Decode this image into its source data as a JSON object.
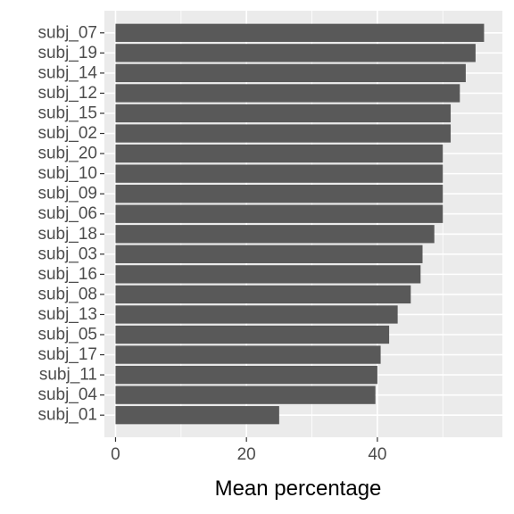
{
  "chart_data": {
    "type": "bar",
    "orientation": "horizontal",
    "categories": [
      "subj_07",
      "subj_19",
      "subj_14",
      "subj_12",
      "subj_15",
      "subj_02",
      "subj_20",
      "subj_10",
      "subj_09",
      "subj_06",
      "subj_18",
      "subj_03",
      "subj_16",
      "subj_08",
      "subj_13",
      "subj_05",
      "subj_17",
      "subj_11",
      "subj_04",
      "subj_01"
    ],
    "values": [
      56.3,
      55.0,
      53.5,
      52.6,
      51.2,
      51.2,
      50.0,
      50.0,
      50.0,
      50.0,
      48.7,
      46.9,
      46.6,
      45.1,
      43.1,
      41.8,
      40.5,
      40.0,
      39.7,
      25.0
    ],
    "xlabel": "Mean percentage",
    "ylabel": "",
    "xlim": [
      -1.7,
      59.1
    ],
    "xticks": [
      0,
      20,
      40
    ],
    "xtick_labels": [
      "0",
      "20",
      "40"
    ],
    "grid": true,
    "colors": {
      "panel": "#ebebeb",
      "bar": "#595959",
      "grid": "#ffffff",
      "tick_text": "#4d4d4d",
      "title_text": "#000000"
    }
  }
}
